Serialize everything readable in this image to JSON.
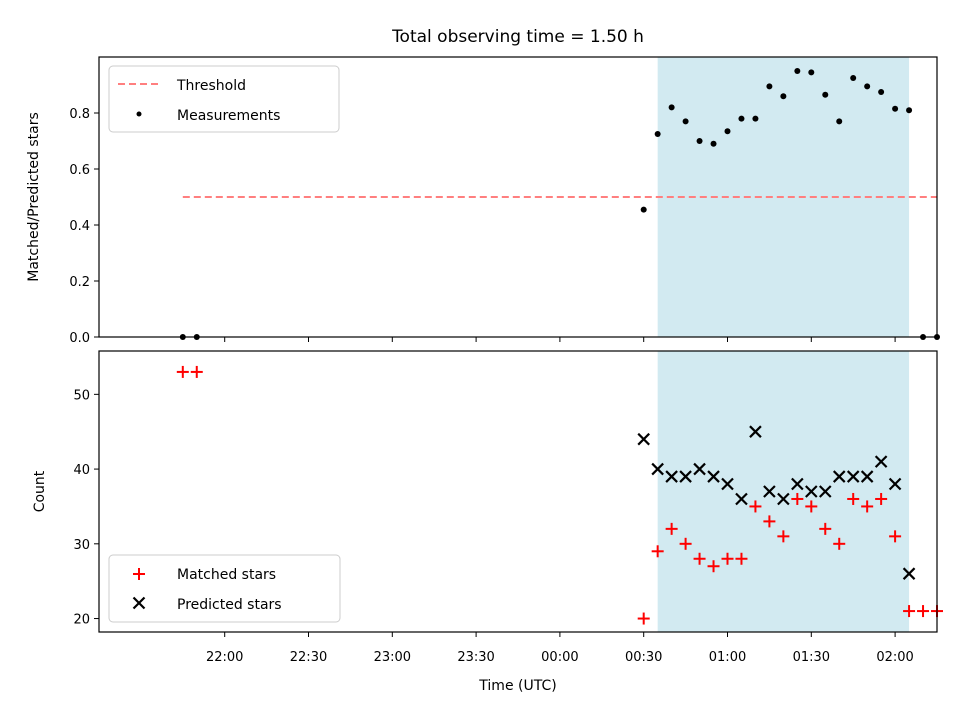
{
  "title": "Total observing time = 1.50 h",
  "colors": {
    "highlight": "#add8e6",
    "threshold": "#ff7f7f",
    "measurement": "#000000",
    "matched": "#ff0000",
    "predicted": "#000000"
  },
  "chart_data": [
    {
      "type": "scatter",
      "panel": "top",
      "ylabel": "Matched/Predicted stars",
      "ylim": [
        0,
        1.0
      ],
      "yticks": [
        0.0,
        0.2,
        0.4,
        0.6,
        0.8
      ],
      "ytick_labels": [
        "0.0",
        "0.2",
        "0.4",
        "0.6",
        "0.8"
      ],
      "xlim_minutes": [
        1275,
        1575
      ],
      "highlight_span": [
        "00:35",
        "02:05"
      ],
      "legend": {
        "placement": "upper-left",
        "entries": [
          "Threshold",
          "Measurements"
        ]
      },
      "threshold": {
        "name": "Threshold",
        "y": 0.5,
        "x": [
          "21:45",
          "02:15"
        ]
      },
      "series": [
        {
          "name": "Measurements",
          "points": [
            {
              "x": "21:45",
              "y": 0.0
            },
            {
              "x": "21:50",
              "y": 0.0
            },
            {
              "x": "00:30",
              "y": 0.455
            },
            {
              "x": "00:35",
              "y": 0.725
            },
            {
              "x": "00:40",
              "y": 0.82
            },
            {
              "x": "00:45",
              "y": 0.77
            },
            {
              "x": "00:50",
              "y": 0.7
            },
            {
              "x": "00:55",
              "y": 0.69
            },
            {
              "x": "01:00",
              "y": 0.735
            },
            {
              "x": "01:05",
              "y": 0.78
            },
            {
              "x": "01:10",
              "y": 0.78
            },
            {
              "x": "01:15",
              "y": 0.895
            },
            {
              "x": "01:20",
              "y": 0.86
            },
            {
              "x": "01:25",
              "y": 0.95
            },
            {
              "x": "01:30",
              "y": 0.945
            },
            {
              "x": "01:35",
              "y": 0.865
            },
            {
              "x": "01:40",
              "y": 0.77
            },
            {
              "x": "01:45",
              "y": 0.925
            },
            {
              "x": "01:50",
              "y": 0.895
            },
            {
              "x": "01:55",
              "y": 0.875
            },
            {
              "x": "02:00",
              "y": 0.815
            },
            {
              "x": "02:05",
              "y": 0.81
            },
            {
              "x": "02:10",
              "y": 0.0
            },
            {
              "x": "02:15",
              "y": 0.0
            }
          ]
        }
      ]
    },
    {
      "type": "scatter",
      "panel": "bottom",
      "ylabel": "Count",
      "xlabel": "Time (UTC)",
      "ylim": [
        18.2,
        55.8
      ],
      "yticks": [
        20,
        30,
        40,
        50
      ],
      "ytick_labels": [
        "20",
        "30",
        "40",
        "50"
      ],
      "xlim_minutes": [
        1275,
        1575
      ],
      "xticks": [
        "22:00",
        "22:30",
        "23:00",
        "23:30",
        "00:00",
        "00:30",
        "01:00",
        "01:30",
        "02:00"
      ],
      "highlight_span": [
        "00:35",
        "02:05"
      ],
      "legend": {
        "placement": "lower-left",
        "entries": [
          "Matched stars",
          "Predicted stars"
        ]
      },
      "series": [
        {
          "name": "Matched stars",
          "marker": "plus",
          "points": [
            {
              "x": "21:45",
              "y": 53
            },
            {
              "x": "21:50",
              "y": 53
            },
            {
              "x": "00:30",
              "y": 20
            },
            {
              "x": "00:35",
              "y": 29
            },
            {
              "x": "00:40",
              "y": 32
            },
            {
              "x": "00:45",
              "y": 30
            },
            {
              "x": "00:50",
              "y": 28
            },
            {
              "x": "00:55",
              "y": 27
            },
            {
              "x": "01:00",
              "y": 28
            },
            {
              "x": "01:05",
              "y": 28
            },
            {
              "x": "01:10",
              "y": 35
            },
            {
              "x": "01:15",
              "y": 33
            },
            {
              "x": "01:20",
              "y": 31
            },
            {
              "x": "01:25",
              "y": 36
            },
            {
              "x": "01:30",
              "y": 35
            },
            {
              "x": "01:35",
              "y": 32
            },
            {
              "x": "01:40",
              "y": 30
            },
            {
              "x": "01:45",
              "y": 36
            },
            {
              "x": "01:50",
              "y": 35
            },
            {
              "x": "01:55",
              "y": 36
            },
            {
              "x": "02:00",
              "y": 31
            },
            {
              "x": "02:05",
              "y": 21
            },
            {
              "x": "02:10",
              "y": 21
            },
            {
              "x": "02:15",
              "y": 21
            }
          ]
        },
        {
          "name": "Predicted stars",
          "marker": "x",
          "points": [
            {
              "x": "00:30",
              "y": 44
            },
            {
              "x": "00:35",
              "y": 40
            },
            {
              "x": "00:40",
              "y": 39
            },
            {
              "x": "00:45",
              "y": 39
            },
            {
              "x": "00:50",
              "y": 40
            },
            {
              "x": "00:55",
              "y": 39
            },
            {
              "x": "01:00",
              "y": 38
            },
            {
              "x": "01:05",
              "y": 36
            },
            {
              "x": "01:10",
              "y": 45
            },
            {
              "x": "01:15",
              "y": 37
            },
            {
              "x": "01:20",
              "y": 36
            },
            {
              "x": "01:25",
              "y": 38
            },
            {
              "x": "01:30",
              "y": 37
            },
            {
              "x": "01:35",
              "y": 37
            },
            {
              "x": "01:40",
              "y": 39
            },
            {
              "x": "01:45",
              "y": 39
            },
            {
              "x": "01:50",
              "y": 39
            },
            {
              "x": "01:55",
              "y": 41
            },
            {
              "x": "02:00",
              "y": 38
            },
            {
              "x": "02:05",
              "y": 26
            }
          ]
        }
      ]
    }
  ]
}
